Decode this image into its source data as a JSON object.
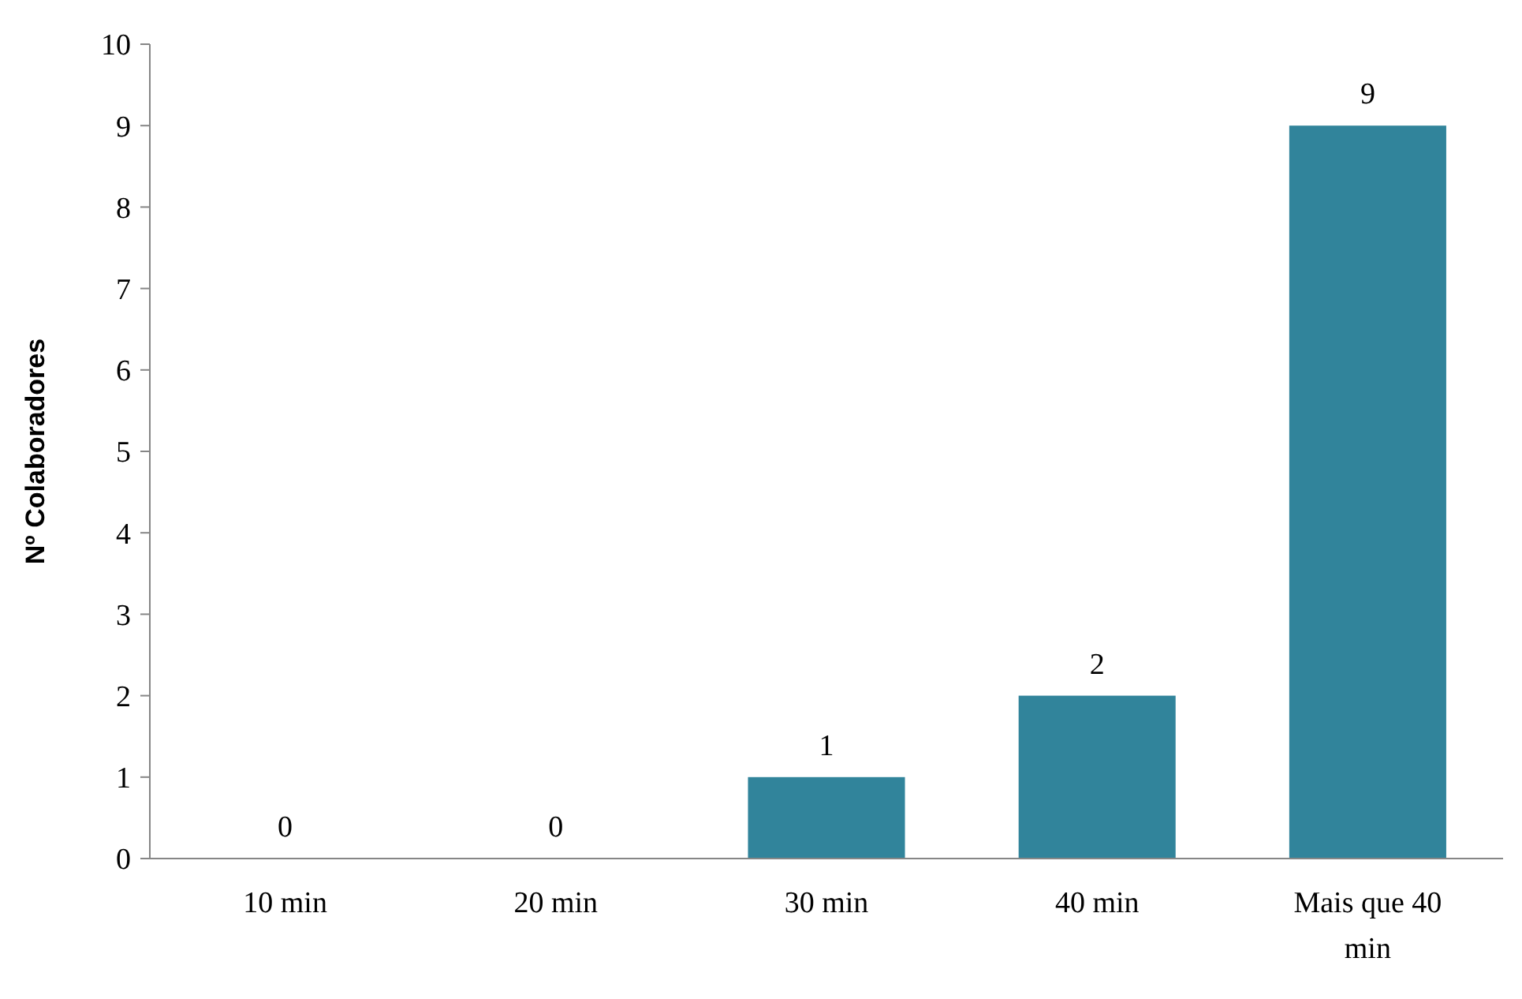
{
  "chart_data": {
    "type": "bar",
    "ylabel": "Nº Colaboradores",
    "categories": [
      "10 min",
      "20 min",
      "30 min",
      "40 min",
      "Mais que 40 min"
    ],
    "values": [
      0,
      0,
      1,
      2,
      9
    ],
    "color": "#31849b",
    "ylim": [
      0,
      10
    ],
    "yticks": [
      0,
      1,
      2,
      3,
      4,
      5,
      6,
      7,
      8,
      9,
      10
    ],
    "grid": false,
    "data_labels": true
  }
}
